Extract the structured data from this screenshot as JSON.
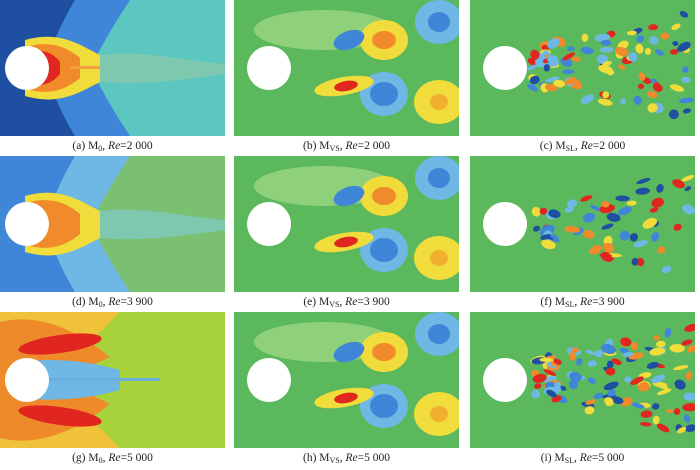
{
  "panels": [
    {
      "letter": "(a)",
      "mode": "M",
      "sub": "0",
      "re_label": "Re",
      "re_value": "2 000",
      "type": "mean0",
      "tone": "blue"
    },
    {
      "letter": "(b)",
      "mode": "M",
      "sub": "VS",
      "re_label": "Re",
      "re_value": "2 000",
      "type": "vs"
    },
    {
      "letter": "(c)",
      "mode": "M",
      "sub": "SL",
      "re_label": "Re",
      "re_value": "2 000",
      "type": "sl",
      "density": 1.0
    },
    {
      "letter": "(d)",
      "mode": "M",
      "sub": "0",
      "re_label": "Re",
      "re_value": "3 900",
      "type": "mean0",
      "tone": "mid"
    },
    {
      "letter": "(e)",
      "mode": "M",
      "sub": "VS",
      "re_label": "Re",
      "re_value": "3 900",
      "type": "vs"
    },
    {
      "letter": "(f)",
      "mode": "M",
      "sub": "SL",
      "re_label": "Re",
      "re_value": "3 900",
      "type": "sl",
      "density": 0.6
    },
    {
      "letter": "(g)",
      "mode": "M",
      "sub": "0",
      "re_label": "Re",
      "re_value": "5 000",
      "type": "mean0",
      "tone": "warm"
    },
    {
      "letter": "(h)",
      "mode": "M",
      "sub": "VS",
      "re_label": "Re",
      "re_value": "5 000",
      "type": "vs"
    },
    {
      "letter": "(i)",
      "mode": "M",
      "sub": "SL",
      "re_label": "Re",
      "re_value": "5 000",
      "type": "sl",
      "density": 1.2
    }
  ],
  "colors": {
    "bg_green": "#5cb85c",
    "dark_blue": "#1e4fa0",
    "blue": "#3f86d8",
    "light_blue": "#6fb8e6",
    "cyan": "#7ecfd0",
    "yellow": "#f0dc3a",
    "orange": "#f08a2a",
    "red": "#e0261e",
    "cylinder": "#ffffff"
  }
}
